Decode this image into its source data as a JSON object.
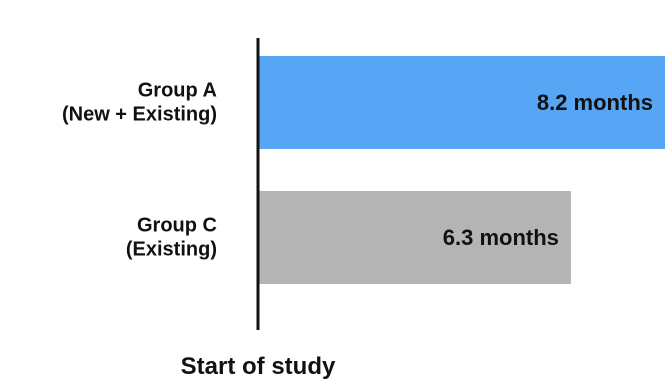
{
  "chart_data": {
    "type": "bar",
    "orientation": "horizontal",
    "categories": [
      [
        "Group A",
        "(New + Existing)"
      ],
      [
        "Group C",
        "(Existing)"
      ]
    ],
    "values": [
      8.2,
      6.3
    ],
    "data_labels": [
      "8.2 months",
      "6.3 months"
    ],
    "colors": [
      "#57a5f5",
      "#b4b4b4"
    ],
    "xlabel": "Start of study",
    "ylabel": "",
    "title": "",
    "xlim": [
      0,
      8.2
    ],
    "grid": false,
    "legend": "none",
    "axis_color": "#111111"
  }
}
